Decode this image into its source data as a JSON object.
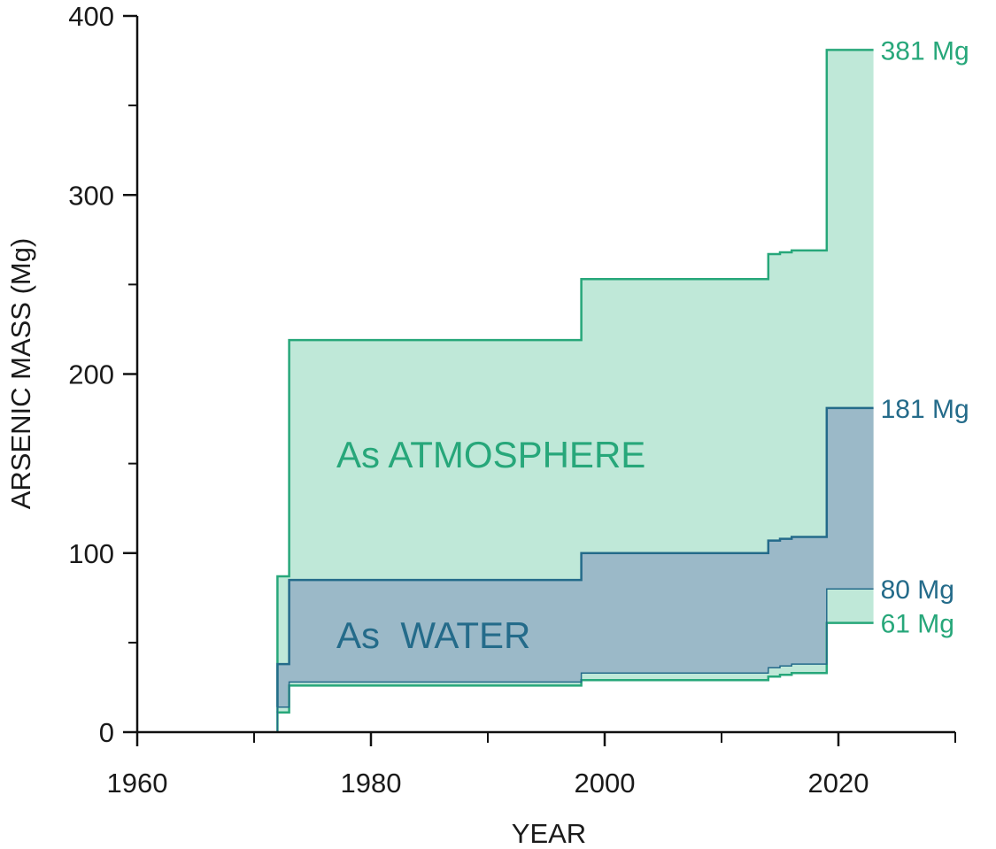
{
  "chart_data": {
    "type": "area",
    "xlabel": "YEAR",
    "ylabel": "ARSENIC MASS (Mg)",
    "xlim": [
      1960,
      2030
    ],
    "ylim": [
      0,
      400
    ],
    "x_ticks_labeled": [
      1960,
      1980,
      2000,
      2020
    ],
    "x_ticks_minor": [
      1970,
      1990,
      2010,
      2030
    ],
    "y_ticks_labeled": [
      0,
      100,
      200,
      300,
      400
    ],
    "y_ticks_minor": [
      50,
      150,
      250,
      350
    ],
    "colors": {
      "atmosphere_fill": "#bfe8d8",
      "atmosphere_line": "#27a77a",
      "water_fill": "#9bb9c8",
      "water_line": "#246b8a"
    },
    "series": [
      {
        "name": "As ATMOSPHERE",
        "role": "upper",
        "steps": [
          [
            1972,
            87
          ],
          [
            1973,
            219
          ],
          [
            1998,
            253
          ],
          [
            2014,
            267
          ],
          [
            2015,
            268
          ],
          [
            2016,
            269
          ],
          [
            2019,
            381
          ],
          [
            2023,
            381
          ]
        ]
      },
      {
        "name": "As ATMOSPHERE",
        "role": "lower",
        "steps": [
          [
            1972,
            11
          ],
          [
            1973,
            26
          ],
          [
            1998,
            29
          ],
          [
            2014,
            31
          ],
          [
            2015,
            32
          ],
          [
            2016,
            33
          ],
          [
            2019,
            61
          ],
          [
            2023,
            61
          ]
        ]
      },
      {
        "name": "As  WATER",
        "role": "upper",
        "steps": [
          [
            1972,
            38
          ],
          [
            1973,
            85
          ],
          [
            1998,
            100
          ],
          [
            2014,
            107
          ],
          [
            2015,
            108
          ],
          [
            2016,
            109
          ],
          [
            2019,
            181
          ],
          [
            2023,
            181
          ]
        ]
      },
      {
        "name": "As  WATER",
        "role": "lower",
        "steps": [
          [
            1972,
            14
          ],
          [
            1973,
            28
          ],
          [
            1998,
            33
          ],
          [
            2014,
            36
          ],
          [
            2015,
            37
          ],
          [
            2016,
            38
          ],
          [
            2019,
            80
          ],
          [
            2023,
            80
          ]
        ]
      }
    ],
    "start_year": 1972,
    "end_year": 2023,
    "region_labels": {
      "atmosphere": "As ATMOSPHERE",
      "water": "As  WATER"
    },
    "end_labels": [
      {
        "text": "381 Mg",
        "value": 381,
        "series": "atmosphere"
      },
      {
        "text": "181 Mg",
        "value": 181,
        "series": "water"
      },
      {
        "text": "80 Mg",
        "value": 80,
        "series": "water"
      },
      {
        "text": "61 Mg",
        "value": 61,
        "series": "atmosphere"
      }
    ]
  }
}
